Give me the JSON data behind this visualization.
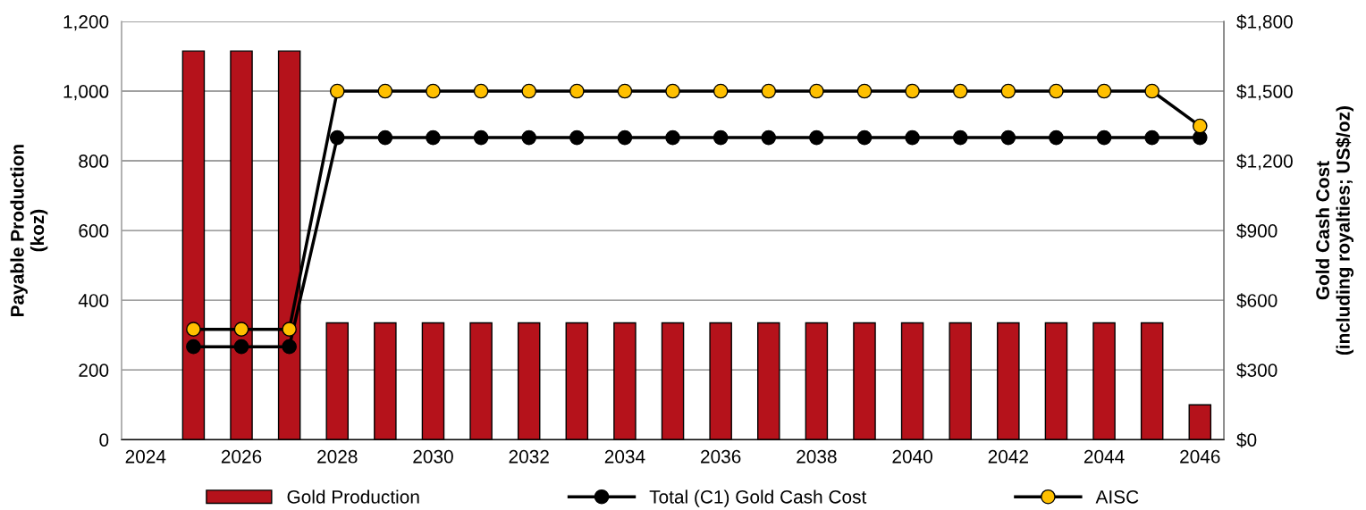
{
  "chart_data": {
    "type": "bar",
    "xlabel": null,
    "ylabel": "Payable Production\n(koz)",
    "y2label": "Gold Cash Cost\n(including royalties; US$/oz)",
    "categories": [
      "2024",
      null,
      "2026",
      null,
      "2028",
      null,
      "2030",
      null,
      "2032",
      null,
      "2034",
      null,
      "2036",
      null,
      "2038",
      null,
      "2040",
      null,
      "2042",
      null,
      "2044",
      null,
      "2046"
    ],
    "series": [
      {
        "name": "Gold Production",
        "color": "#b5121b",
        "values": [
          null,
          1115,
          1115,
          1115,
          335,
          335,
          335,
          335,
          335,
          335,
          335,
          335,
          335,
          335,
          335,
          335,
          335,
          335,
          335,
          335,
          335,
          335,
          100
        ]
      },
      {
        "name": "Total (C1) Gold Cash Cost",
        "type": "line",
        "axis": "y2",
        "color": "#000000",
        "marker": "circle",
        "values": [
          null,
          400,
          400,
          400,
          1300,
          1300,
          1300,
          1300,
          1300,
          1300,
          1300,
          1300,
          1300,
          1300,
          1300,
          1300,
          1300,
          1300,
          1300,
          1300,
          1300,
          1300,
          1300
        ]
      },
      {
        "name": "AISC",
        "type": "line",
        "axis": "y2",
        "color": "#ffc000",
        "marker": "circle",
        "values": [
          null,
          475,
          475,
          475,
          1500,
          1500,
          1500,
          1500,
          1500,
          1500,
          1500,
          1500,
          1500,
          1500,
          1500,
          1500,
          1500,
          1500,
          1500,
          1500,
          1500,
          1500,
          1350
        ]
      }
    ],
    "ylim": [
      0,
      1200
    ],
    "yticks": [
      {
        "value": 0,
        "label": "0"
      },
      {
        "value": 200,
        "label": "200"
      },
      {
        "value": 400,
        "label": "400"
      },
      {
        "value": 600,
        "label": "600"
      },
      {
        "value": 800,
        "label": "800"
      },
      {
        "value": 1000,
        "label": "1,000"
      },
      {
        "value": 1200,
        "label": "1,200"
      }
    ],
    "y2lim": [
      0,
      1800
    ],
    "y2ticks": [
      {
        "value": 0,
        "label": "$0"
      },
      {
        "value": 300,
        "label": "$300"
      },
      {
        "value": 600,
        "label": "$600"
      },
      {
        "value": 900,
        "label": "$900"
      },
      {
        "value": 1200,
        "label": "$1,200"
      },
      {
        "value": 1500,
        "label": "$1,500"
      },
      {
        "value": 1800,
        "label": "$1,800"
      }
    ],
    "grid": "y",
    "legend": "bottom"
  }
}
